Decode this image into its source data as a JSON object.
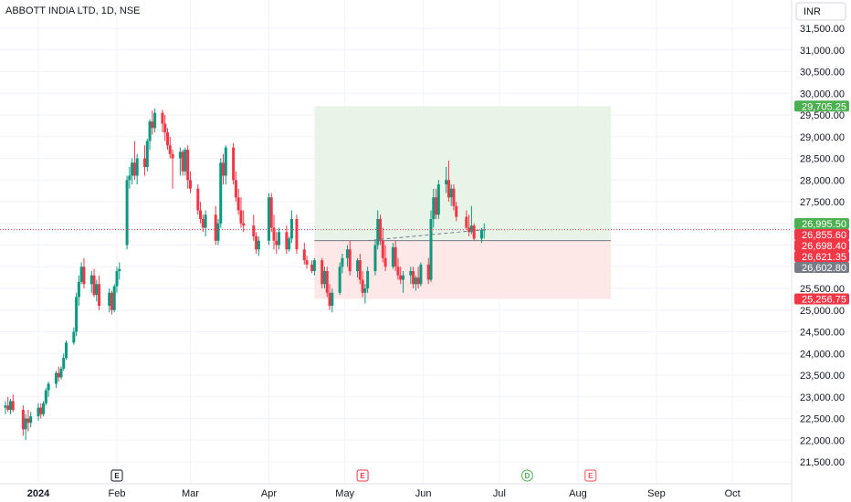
{
  "chart_data": {
    "type": "candlestick",
    "title": "ABBOTT INDIA LTD, 1D, NSE",
    "currency": "INR",
    "y_ticks": [
      21500,
      22000,
      22500,
      23000,
      23500,
      24000,
      24500,
      25000,
      25500,
      26000,
      26500,
      27000,
      27500,
      28000,
      28500,
      29000,
      29500,
      30000,
      30500,
      31000,
      31500
    ],
    "ylim": [
      21300,
      31800
    ],
    "x_ticks": [
      "2024",
      "Feb",
      "Mar",
      "Apr",
      "May",
      "Jun",
      "Jul",
      "Aug",
      "Sep",
      "Oct"
    ],
    "grid": true,
    "candles": [
      {
        "date": "2023-12-19",
        "o": 22750,
        "h": 22900,
        "l": 22600,
        "c": 22800
      },
      {
        "date": "2023-12-20",
        "o": 22800,
        "h": 23000,
        "l": 22650,
        "c": 22700
      },
      {
        "date": "2023-12-21",
        "o": 22700,
        "h": 22950,
        "l": 22600,
        "c": 22900
      },
      {
        "date": "2023-12-22",
        "o": 22900,
        "h": 23050,
        "l": 22650,
        "c": 22700
      },
      {
        "date": "2023-12-26",
        "o": 22700,
        "h": 22800,
        "l": 22100,
        "c": 22250
      },
      {
        "date": "2023-12-27",
        "o": 22250,
        "h": 22600,
        "l": 22000,
        "c": 22500
      },
      {
        "date": "2023-12-28",
        "o": 22500,
        "h": 22700,
        "l": 22200,
        "c": 22400
      },
      {
        "date": "2023-12-29",
        "o": 22400,
        "h": 22650,
        "l": 22300,
        "c": 22550
      },
      {
        "date": "2024-01-01",
        "o": 22550,
        "h": 22850,
        "l": 22450,
        "c": 22750
      },
      {
        "date": "2024-01-02",
        "o": 22750,
        "h": 22850,
        "l": 22500,
        "c": 22600
      },
      {
        "date": "2024-01-03",
        "o": 22600,
        "h": 22900,
        "l": 22550,
        "c": 22850
      },
      {
        "date": "2024-01-04",
        "o": 22850,
        "h": 23200,
        "l": 22800,
        "c": 23150
      },
      {
        "date": "2024-01-05",
        "o": 23150,
        "h": 23350,
        "l": 23000,
        "c": 23300
      },
      {
        "date": "2024-01-08",
        "o": 23300,
        "h": 23600,
        "l": 23200,
        "c": 23550
      },
      {
        "date": "2024-01-09",
        "o": 23550,
        "h": 23700,
        "l": 23350,
        "c": 23450
      },
      {
        "date": "2024-01-10",
        "o": 23450,
        "h": 23700,
        "l": 23400,
        "c": 23650
      },
      {
        "date": "2024-01-11",
        "o": 23650,
        "h": 24000,
        "l": 23600,
        "c": 23900
      },
      {
        "date": "2024-01-12",
        "o": 23900,
        "h": 24300,
        "l": 23850,
        "c": 24250
      },
      {
        "date": "2024-01-15",
        "o": 24250,
        "h": 24600,
        "l": 24200,
        "c": 24500
      },
      {
        "date": "2024-01-16",
        "o": 24500,
        "h": 25400,
        "l": 24400,
        "c": 25300
      },
      {
        "date": "2024-01-17",
        "o": 25300,
        "h": 25800,
        "l": 25100,
        "c": 25650
      },
      {
        "date": "2024-01-18",
        "o": 25650,
        "h": 26100,
        "l": 25600,
        "c": 26000
      },
      {
        "date": "2024-01-19",
        "o": 26000,
        "h": 26200,
        "l": 25500,
        "c": 25600
      },
      {
        "date": "2024-01-22",
        "o": 25600,
        "h": 25900,
        "l": 25400,
        "c": 25800
      },
      {
        "date": "2024-01-23",
        "o": 25800,
        "h": 25950,
        "l": 25300,
        "c": 25350
      },
      {
        "date": "2024-01-24",
        "o": 25350,
        "h": 25700,
        "l": 25200,
        "c": 25600
      },
      {
        "date": "2024-01-25",
        "o": 25600,
        "h": 25800,
        "l": 25000,
        "c": 25100
      },
      {
        "date": "2024-01-29",
        "o": 25100,
        "h": 25500,
        "l": 24950,
        "c": 25400
      },
      {
        "date": "2024-01-30",
        "o": 25400,
        "h": 25450,
        "l": 24900,
        "c": 25000
      },
      {
        "date": "2024-01-31",
        "o": 25000,
        "h": 25600,
        "l": 24950,
        "c": 25550
      },
      {
        "date": "2024-02-01",
        "o": 25550,
        "h": 26000,
        "l": 25400,
        "c": 25900
      },
      {
        "date": "2024-02-02",
        "o": 25900,
        "h": 26100,
        "l": 25700,
        "c": 25950
      },
      {
        "date": "2024-02-05",
        "o": 26500,
        "h": 28100,
        "l": 26400,
        "c": 28000
      },
      {
        "date": "2024-02-06",
        "o": 28000,
        "h": 28300,
        "l": 27800,
        "c": 28100
      },
      {
        "date": "2024-02-07",
        "o": 28100,
        "h": 28500,
        "l": 27900,
        "c": 28400
      },
      {
        "date": "2024-02-08",
        "o": 28400,
        "h": 28900,
        "l": 28000,
        "c": 28100
      },
      {
        "date": "2024-02-09",
        "o": 28100,
        "h": 28600,
        "l": 27900,
        "c": 28500
      },
      {
        "date": "2024-02-12",
        "o": 28500,
        "h": 28800,
        "l": 28100,
        "c": 28300
      },
      {
        "date": "2024-02-13",
        "o": 28300,
        "h": 28950,
        "l": 28200,
        "c": 28900
      },
      {
        "date": "2024-02-14",
        "o": 28900,
        "h": 29400,
        "l": 28700,
        "c": 29350
      },
      {
        "date": "2024-02-15",
        "o": 29350,
        "h": 29600,
        "l": 29050,
        "c": 29200
      },
      {
        "date": "2024-02-16",
        "o": 29200,
        "h": 29650,
        "l": 29100,
        "c": 29550
      },
      {
        "date": "2024-02-19",
        "o": 29550,
        "h": 29620,
        "l": 29100,
        "c": 29300
      },
      {
        "date": "2024-02-20",
        "o": 29300,
        "h": 29500,
        "l": 28900,
        "c": 29100
      },
      {
        "date": "2024-02-21",
        "o": 29100,
        "h": 29200,
        "l": 28700,
        "c": 28800
      },
      {
        "date": "2024-02-22",
        "o": 28800,
        "h": 29000,
        "l": 28500,
        "c": 28600
      },
      {
        "date": "2024-02-23",
        "o": 28600,
        "h": 28700,
        "l": 27800,
        "c": 28500
      },
      {
        "date": "2024-02-26",
        "o": 28500,
        "h": 28750,
        "l": 28100,
        "c": 28650
      },
      {
        "date": "2024-02-27",
        "o": 28650,
        "h": 28700,
        "l": 28100,
        "c": 28200
      },
      {
        "date": "2024-02-28",
        "o": 28200,
        "h": 28750,
        "l": 28100,
        "c": 28700
      },
      {
        "date": "2024-02-29",
        "o": 28700,
        "h": 28800,
        "l": 27800,
        "c": 28000
      },
      {
        "date": "2024-03-01",
        "o": 28000,
        "h": 28200,
        "l": 27700,
        "c": 27800
      },
      {
        "date": "2024-03-04",
        "o": 27800,
        "h": 27900,
        "l": 27200,
        "c": 27300
      },
      {
        "date": "2024-03-05",
        "o": 27300,
        "h": 27500,
        "l": 27000,
        "c": 27100
      },
      {
        "date": "2024-03-06",
        "o": 27100,
        "h": 27200,
        "l": 26800,
        "c": 26900
      },
      {
        "date": "2024-03-07",
        "o": 26900,
        "h": 27300,
        "l": 26700,
        "c": 27200
      },
      {
        "date": "2024-03-11",
        "o": 27200,
        "h": 27400,
        "l": 26500,
        "c": 26600
      },
      {
        "date": "2024-03-12",
        "o": 26600,
        "h": 27100,
        "l": 26500,
        "c": 27000
      },
      {
        "date": "2024-03-13",
        "o": 27000,
        "h": 28500,
        "l": 26900,
        "c": 28400
      },
      {
        "date": "2024-03-14",
        "o": 28400,
        "h": 28600,
        "l": 27900,
        "c": 28100
      },
      {
        "date": "2024-03-15",
        "o": 28100,
        "h": 28800,
        "l": 27900,
        "c": 28750
      },
      {
        "date": "2024-03-18",
        "o": 28750,
        "h": 28850,
        "l": 27900,
        "c": 28000
      },
      {
        "date": "2024-03-19",
        "o": 28000,
        "h": 28200,
        "l": 27500,
        "c": 27600
      },
      {
        "date": "2024-03-20",
        "o": 27600,
        "h": 27800,
        "l": 27200,
        "c": 27300
      },
      {
        "date": "2024-03-21",
        "o": 27300,
        "h": 27600,
        "l": 26900,
        "c": 27000
      },
      {
        "date": "2024-03-22",
        "o": 27000,
        "h": 27300,
        "l": 26800,
        "c": 26950
      },
      {
        "date": "2024-03-26",
        "o": 26950,
        "h": 27200,
        "l": 26600,
        "c": 26700
      },
      {
        "date": "2024-03-27",
        "o": 26700,
        "h": 26800,
        "l": 26300,
        "c": 26400
      },
      {
        "date": "2024-03-28",
        "o": 26400,
        "h": 26700,
        "l": 26250,
        "c": 26600
      },
      {
        "date": "2024-04-01",
        "o": 26600,
        "h": 27700,
        "l": 26500,
        "c": 27600
      },
      {
        "date": "2024-04-02",
        "o": 27600,
        "h": 27700,
        "l": 26800,
        "c": 26900
      },
      {
        "date": "2024-04-03",
        "o": 26900,
        "h": 27200,
        "l": 26400,
        "c": 26600
      },
      {
        "date": "2024-04-04",
        "o": 26600,
        "h": 26800,
        "l": 26300,
        "c": 26500
      },
      {
        "date": "2024-04-05",
        "o": 26500,
        "h": 26900,
        "l": 26400,
        "c": 26800
      },
      {
        "date": "2024-04-08",
        "o": 26800,
        "h": 26950,
        "l": 26300,
        "c": 26400
      },
      {
        "date": "2024-04-09",
        "o": 26400,
        "h": 26700,
        "l": 26350,
        "c": 26650
      },
      {
        "date": "2024-04-10",
        "o": 26650,
        "h": 27300,
        "l": 26550,
        "c": 27100
      },
      {
        "date": "2024-04-12",
        "o": 27100,
        "h": 27200,
        "l": 26300,
        "c": 26400
      },
      {
        "date": "2024-04-15",
        "o": 26400,
        "h": 26550,
        "l": 26050,
        "c": 26150
      },
      {
        "date": "2024-04-16",
        "o": 26150,
        "h": 26250,
        "l": 25950,
        "c": 26050
      },
      {
        "date": "2024-04-18",
        "o": 26050,
        "h": 26150,
        "l": 25850,
        "c": 25900
      },
      {
        "date": "2024-04-19",
        "o": 25900,
        "h": 26200,
        "l": 25800,
        "c": 26150
      },
      {
        "date": "2024-04-22",
        "o": 26150,
        "h": 26200,
        "l": 25500,
        "c": 25600
      },
      {
        "date": "2024-04-23",
        "o": 25600,
        "h": 26000,
        "l": 25500,
        "c": 25900
      },
      {
        "date": "2024-04-24",
        "o": 25900,
        "h": 26000,
        "l": 25300,
        "c": 25400
      },
      {
        "date": "2024-04-25",
        "o": 25400,
        "h": 25600,
        "l": 25000,
        "c": 25100
      },
      {
        "date": "2024-04-26",
        "o": 25100,
        "h": 25500,
        "l": 24950,
        "c": 25400
      },
      {
        "date": "2024-04-29",
        "o": 25400,
        "h": 26100,
        "l": 25350,
        "c": 26000
      },
      {
        "date": "2024-04-30",
        "o": 26000,
        "h": 26300,
        "l": 25850,
        "c": 26200
      },
      {
        "date": "2024-05-02",
        "o": 26200,
        "h": 26500,
        "l": 26000,
        "c": 26400
      },
      {
        "date": "2024-05-03",
        "o": 26400,
        "h": 26600,
        "l": 25800,
        "c": 25900
      },
      {
        "date": "2024-05-06",
        "o": 25900,
        "h": 26200,
        "l": 25750,
        "c": 26150
      },
      {
        "date": "2024-05-07",
        "o": 26150,
        "h": 26300,
        "l": 25600,
        "c": 25700
      },
      {
        "date": "2024-05-08",
        "o": 25700,
        "h": 25900,
        "l": 25300,
        "c": 25400
      },
      {
        "date": "2024-05-09",
        "o": 25400,
        "h": 25600,
        "l": 25150,
        "c": 25500
      },
      {
        "date": "2024-05-10",
        "o": 25500,
        "h": 26000,
        "l": 25400,
        "c": 25900
      },
      {
        "date": "2024-05-13",
        "o": 25900,
        "h": 26600,
        "l": 25800,
        "c": 26500
      },
      {
        "date": "2024-05-14",
        "o": 26500,
        "h": 27300,
        "l": 26400,
        "c": 27100
      },
      {
        "date": "2024-05-15",
        "o": 27100,
        "h": 27200,
        "l": 26500,
        "c": 26600
      },
      {
        "date": "2024-05-16",
        "o": 26600,
        "h": 26900,
        "l": 26100,
        "c": 26200
      },
      {
        "date": "2024-05-17",
        "o": 26200,
        "h": 26500,
        "l": 25900,
        "c": 26000
      },
      {
        "date": "2024-05-20",
        "o": 26000,
        "h": 26550,
        "l": 25950,
        "c": 26450
      },
      {
        "date": "2024-05-21",
        "o": 26450,
        "h": 26600,
        "l": 25900,
        "c": 26000
      },
      {
        "date": "2024-05-22",
        "o": 26000,
        "h": 26200,
        "l": 25700,
        "c": 25800
      },
      {
        "date": "2024-05-23",
        "o": 25800,
        "h": 26000,
        "l": 25600,
        "c": 25700
      },
      {
        "date": "2024-05-24",
        "o": 25700,
        "h": 25900,
        "l": 25400,
        "c": 25800
      },
      {
        "date": "2024-05-27",
        "o": 25800,
        "h": 26000,
        "l": 25600,
        "c": 25900
      },
      {
        "date": "2024-05-28",
        "o": 25900,
        "h": 26000,
        "l": 25500,
        "c": 25600
      },
      {
        "date": "2024-05-29",
        "o": 25600,
        "h": 25800,
        "l": 25450,
        "c": 25750
      },
      {
        "date": "2024-05-30",
        "o": 25750,
        "h": 26000,
        "l": 25500,
        "c": 25600
      },
      {
        "date": "2024-05-31",
        "o": 25600,
        "h": 26100,
        "l": 25550,
        "c": 26050
      },
      {
        "date": "2024-06-03",
        "o": 26050,
        "h": 26200,
        "l": 25600,
        "c": 25700
      },
      {
        "date": "2024-06-04",
        "o": 25700,
        "h": 27300,
        "l": 25650,
        "c": 27100
      },
      {
        "date": "2024-06-05",
        "o": 27100,
        "h": 27800,
        "l": 26900,
        "c": 27600
      },
      {
        "date": "2024-06-06",
        "o": 27600,
        "h": 27800,
        "l": 27100,
        "c": 27200
      },
      {
        "date": "2024-06-07",
        "o": 27200,
        "h": 28000,
        "l": 27100,
        "c": 27900
      },
      {
        "date": "2024-06-10",
        "o": 27900,
        "h": 28300,
        "l": 27700,
        "c": 28000
      },
      {
        "date": "2024-06-11",
        "o": 28000,
        "h": 28450,
        "l": 27500,
        "c": 27600
      },
      {
        "date": "2024-06-12",
        "o": 27600,
        "h": 27900,
        "l": 27400,
        "c": 27800
      },
      {
        "date": "2024-06-13",
        "o": 27800,
        "h": 27900,
        "l": 27300,
        "c": 27400
      },
      {
        "date": "2024-06-14",
        "o": 27400,
        "h": 27500,
        "l": 27050,
        "c": 27150
      },
      {
        "date": "2024-06-18",
        "o": 27150,
        "h": 27300,
        "l": 26850,
        "c": 26900
      },
      {
        "date": "2024-06-19",
        "o": 26900,
        "h": 27200,
        "l": 26700,
        "c": 26800
      },
      {
        "date": "2024-06-20",
        "o": 26800,
        "h": 27400,
        "l": 26750,
        "c": 26950
      },
      {
        "date": "2024-06-21",
        "o": 26950,
        "h": 27000,
        "l": 26600,
        "c": 26650
      },
      {
        "date": "2024-06-24",
        "o": 26650,
        "h": 26900,
        "l": 26550,
        "c": 26850
      },
      {
        "date": "2024-06-25",
        "o": 26850,
        "h": 27000,
        "l": 26650,
        "c": 26855.6
      }
    ],
    "position": {
      "type": "long",
      "entry": 26602.8,
      "target": 29705.25,
      "stop": 25256.75,
      "start_date": "2024-04-19",
      "end_date": "2024-08-14"
    },
    "current_price": 26855.6,
    "dashed_line": {
      "from_date": "2024-05-10",
      "from_price": 26602.8,
      "to_date": "2024-06-25",
      "to_price": 26855.6
    },
    "price_labels": [
      {
        "text": "29,705.25",
        "value": 29705.25,
        "color": "#4caf50"
      },
      {
        "text": "26,995.50",
        "value": 26995.5,
        "color": "#4caf50"
      },
      {
        "text": "26,855.60",
        "value": 26855.6,
        "color": "#f23645"
      },
      {
        "text": "26,698.40",
        "value": 26698.4,
        "color": "#f23645"
      },
      {
        "text": "26,621.35",
        "value": 26621.35,
        "color": "#f23645"
      },
      {
        "text": "26,602.80",
        "value": 26602.8,
        "color": "#787b86"
      },
      {
        "text": "25,256.75",
        "value": 25256.75,
        "color": "#f23645"
      }
    ],
    "events": [
      {
        "label": "E",
        "date": "2024-02-01",
        "color": "#131722",
        "type": "earnings"
      },
      {
        "label": "E",
        "date": "2024-05-08",
        "color": "#f23645",
        "type": "earnings"
      },
      {
        "label": "D",
        "date": "2024-07-12",
        "color": "#4caf50",
        "type": "dividend"
      },
      {
        "label": "E",
        "date": "2024-08-06",
        "color": "#f7525f",
        "type": "earnings"
      }
    ],
    "colors": {
      "up": "#089981",
      "down": "#f23645",
      "target_zone": "#e8f4e8",
      "stop_zone": "#fde7e7"
    }
  }
}
